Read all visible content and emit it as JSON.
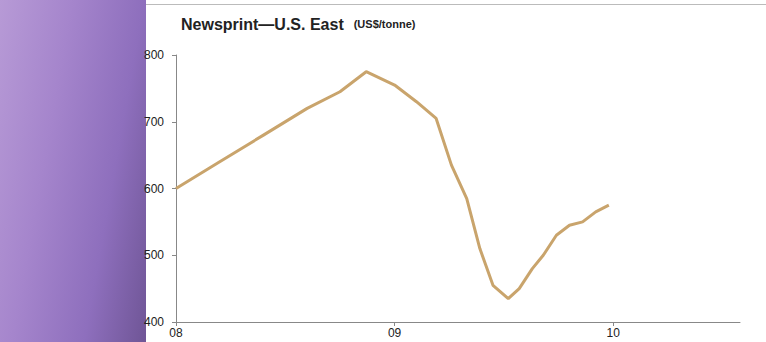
{
  "chart_data": {
    "type": "line",
    "title": "Newsprint—U.S. East",
    "subtitle": "(US$/tonne)",
    "color": "#c9a46c",
    "x": [
      2008.0,
      2008.2,
      2008.4,
      2008.6,
      2008.75,
      2008.87,
      2009.0,
      2009.1,
      2009.19,
      2009.26,
      2009.33,
      2009.39,
      2009.45,
      2009.52,
      2009.57,
      2009.63,
      2009.68,
      2009.74,
      2009.8,
      2009.86,
      2009.92,
      2009.98
    ],
    "values": [
      600,
      640,
      680,
      720,
      745,
      775,
      755,
      730,
      705,
      635,
      585,
      510,
      455,
      435,
      450,
      480,
      500,
      530,
      545,
      550,
      565,
      575
    ],
    "xlim": [
      2008,
      2010.58
    ],
    "xticks": [
      {
        "value": 2008,
        "label": "08"
      },
      {
        "value": 2009,
        "label": "09"
      },
      {
        "value": 2010,
        "label": "10"
      }
    ],
    "ylim": [
      400,
      800
    ],
    "yticks": [
      400,
      500,
      600,
      700,
      800
    ],
    "grid": false
  }
}
